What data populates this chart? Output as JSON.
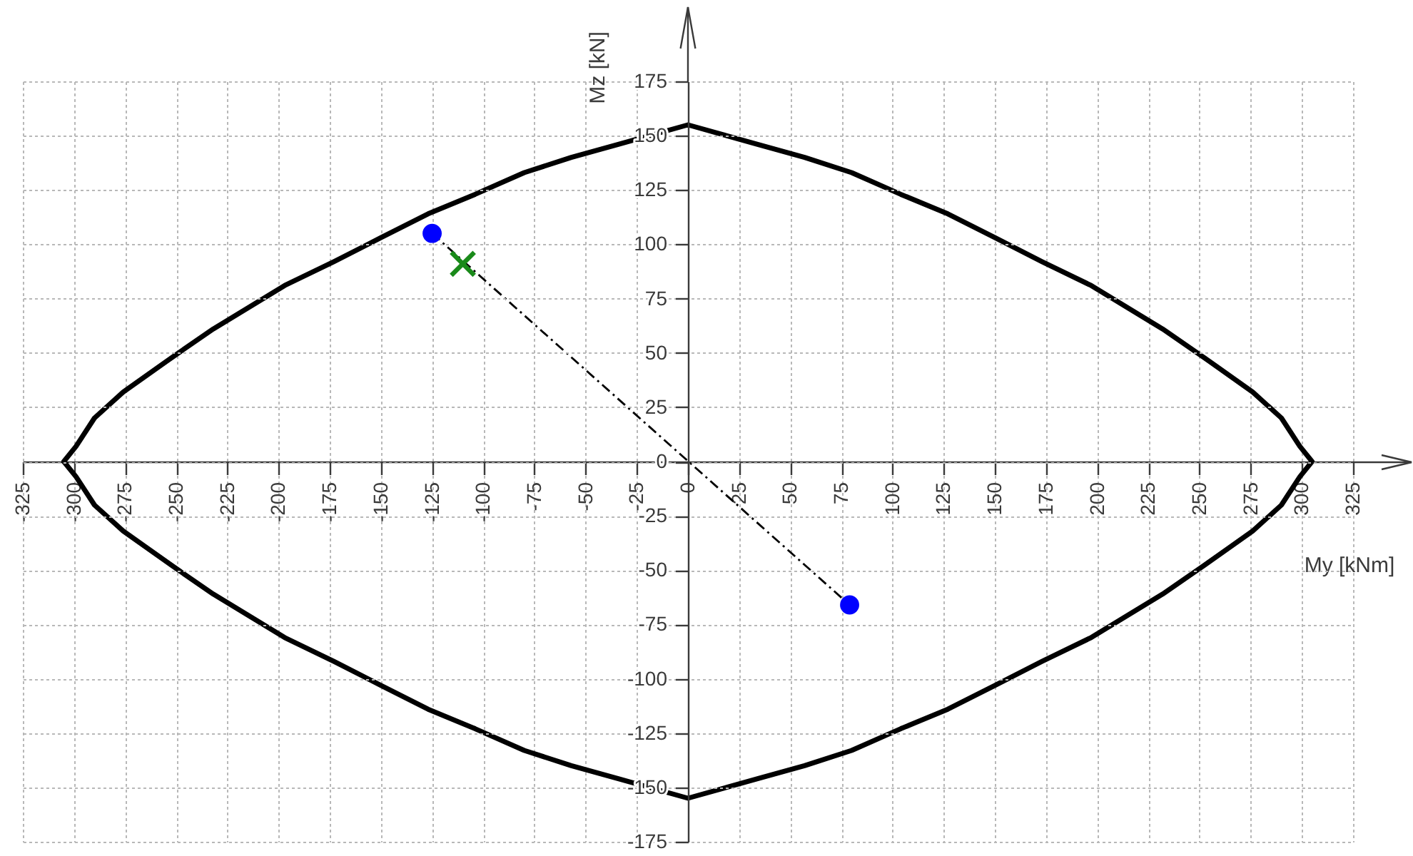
{
  "chart_data": {
    "type": "line",
    "xlabel": "My [kNm]",
    "ylabel": "Mz [kN]",
    "xlim": [
      -325,
      325
    ],
    "ylim": [
      -175,
      175
    ],
    "xticks": [
      -325,
      -300,
      -275,
      -250,
      -225,
      -200,
      -175,
      -150,
      -125,
      -100,
      -75,
      -50,
      -25,
      0,
      25,
      50,
      75,
      100,
      125,
      150,
      175,
      200,
      225,
      250,
      275,
      300,
      325
    ],
    "yticks": [
      -175,
      -150,
      -125,
      -100,
      -75,
      -50,
      -25,
      0,
      25,
      50,
      75,
      100,
      125,
      150,
      175
    ],
    "grid": true,
    "series": [
      {
        "type": "line",
        "color": "#000000",
        "line_style": "dashed",
        "x": [
          -125,
          79
        ],
        "values": [
          105,
          -66
        ]
      },
      {
        "type": "scatter",
        "color": "#0000ff",
        "marker": "circle",
        "x": [
          -125,
          79
        ],
        "values": [
          105,
          -66
        ]
      },
      {
        "type": "scatter",
        "color": "#1a8a1a",
        "marker": "cross",
        "x": [
          -110
        ],
        "values": [
          91
        ]
      }
    ]
  }
}
